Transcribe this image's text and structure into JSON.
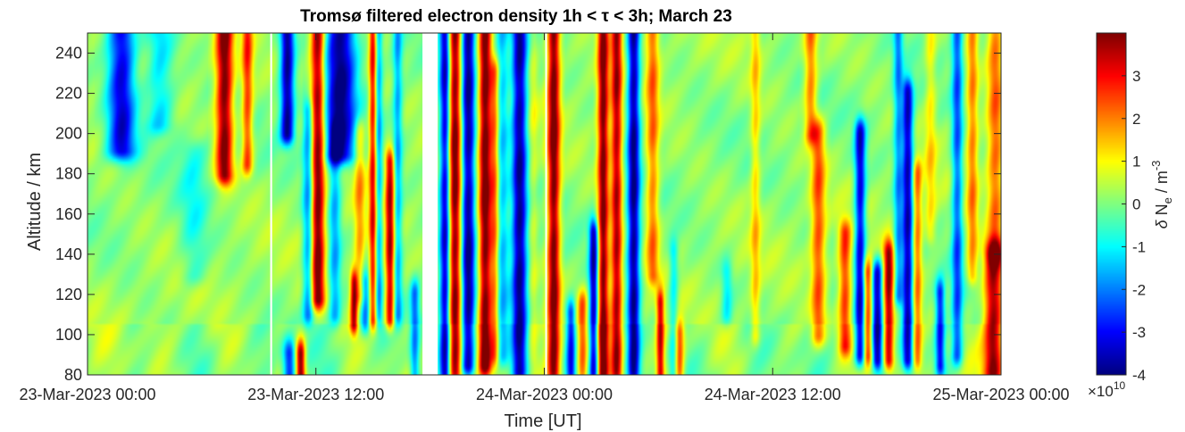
{
  "chart_data": {
    "type": "heatmap",
    "title": "Tromsø filtered electron density 1h < τ < 3h; March 23",
    "xlabel": "Time [UT]",
    "ylabel": "Altitude / km",
    "colorbar_label": "δ N_e / m^-3",
    "colorbar_multiplier": "×10^10",
    "colormap": "jet",
    "x_ticks": [
      "23-Mar-2023 00:00",
      "23-Mar-2023 12:00",
      "24-Mar-2023 00:00",
      "24-Mar-2023 12:00",
      "25-Mar-2023 00:00"
    ],
    "x_range_hours": [
      0,
      48
    ],
    "y_ticks": [
      80,
      100,
      120,
      140,
      160,
      180,
      200,
      220,
      240
    ],
    "ylim": [
      80,
      250
    ],
    "clim": [
      -4,
      4
    ],
    "colorbar_ticks": [
      -4,
      -3,
      -2,
      -1,
      0,
      1,
      2,
      3
    ],
    "data_gaps_hours": [
      [
        9.6,
        9.7
      ],
      [
        17.6,
        18.4
      ],
      [
        24.05,
        24.1
      ]
    ],
    "features": [
      {
        "center_h": 1.8,
        "width_h": 0.9,
        "value": -3.5,
        "alt_top": 250,
        "alt_bottom": 192
      },
      {
        "center_h": 3.8,
        "width_h": 0.9,
        "value": -1.5,
        "alt_top": 250,
        "alt_bottom": 205
      },
      {
        "center_h": 5.6,
        "width_h": 0.9,
        "value": -0.9,
        "alt_top": 190,
        "alt_bottom": 130
      },
      {
        "center_h": 7.2,
        "width_h": 0.55,
        "value": 4.0,
        "alt_top": 250,
        "alt_bottom": 180
      },
      {
        "center_h": 8.4,
        "width_h": 0.35,
        "value": 2.5,
        "alt_top": 250,
        "alt_bottom": 185
      },
      {
        "center_h": 10.5,
        "width_h": 0.45,
        "value": -4.0,
        "alt_top": 250,
        "alt_bottom": 200
      },
      {
        "center_h": 10.6,
        "width_h": 0.4,
        "value": -3.0,
        "alt_top": 90,
        "alt_bottom": 80
      },
      {
        "center_h": 11.2,
        "width_h": 0.3,
        "value": 4.0,
        "alt_top": 90,
        "alt_bottom": 80
      },
      {
        "center_h": 11.6,
        "width_h": 0.35,
        "value": -2.2,
        "alt_top": 210,
        "alt_bottom": 110
      },
      {
        "center_h": 12.1,
        "width_h": 0.45,
        "value": 4.0,
        "alt_top": 250,
        "alt_bottom": 118
      },
      {
        "center_h": 13.3,
        "width_h": 1.0,
        "value": -4.0,
        "alt_top": 250,
        "alt_bottom": 190
      },
      {
        "center_h": 13.0,
        "width_h": 0.4,
        "value": -1.8,
        "alt_top": 200,
        "alt_bottom": 110
      },
      {
        "center_h": 14.0,
        "width_h": 0.25,
        "value": 3.5,
        "alt_top": 125,
        "alt_bottom": 106
      },
      {
        "center_h": 14.3,
        "width_h": 0.35,
        "value": 1.5,
        "alt_top": 200,
        "alt_bottom": 120
      },
      {
        "center_h": 14.6,
        "width_h": 0.3,
        "value": -2.0,
        "alt_top": 125,
        "alt_bottom": 106
      },
      {
        "center_h": 15.0,
        "width_h": 0.25,
        "value": 3.0,
        "alt_top": 250,
        "alt_bottom": 108
      },
      {
        "center_h": 15.3,
        "width_h": 0.25,
        "value": -1.8,
        "alt_top": 250,
        "alt_bottom": 110
      },
      {
        "center_h": 15.9,
        "width_h": 0.3,
        "value": 3.5,
        "alt_top": 185,
        "alt_bottom": 108
      },
      {
        "center_h": 16.3,
        "width_h": 0.3,
        "value": -1.8,
        "alt_top": 250,
        "alt_bottom": 110
      },
      {
        "center_h": 17.2,
        "width_h": 0.3,
        "value": -2.2,
        "alt_top": 120,
        "alt_bottom": 80
      },
      {
        "center_h": 18.8,
        "width_h": 0.35,
        "value": -3.8,
        "alt_top": 250,
        "alt_bottom": 82
      },
      {
        "center_h": 19.3,
        "width_h": 0.45,
        "value": 4.0,
        "alt_top": 250,
        "alt_bottom": 82
      },
      {
        "center_h": 20.0,
        "width_h": 0.45,
        "value": -4.0,
        "alt_top": 250,
        "alt_bottom": 85
      },
      {
        "center_h": 20.9,
        "width_h": 0.4,
        "value": 4.0,
        "alt_top": 250,
        "alt_bottom": 85
      },
      {
        "center_h": 21.4,
        "width_h": 0.3,
        "value": 2.0,
        "alt_top": 230,
        "alt_bottom": 90
      },
      {
        "center_h": 21.8,
        "width_h": 0.4,
        "value": -1.6,
        "alt_top": 250,
        "alt_bottom": 90
      },
      {
        "center_h": 22.7,
        "width_h": 0.5,
        "value": -4.0,
        "alt_top": 250,
        "alt_bottom": 82
      },
      {
        "center_h": 23.4,
        "width_h": 0.3,
        "value": 0.5,
        "alt_top": 250,
        "alt_bottom": 90
      },
      {
        "center_h": 24.5,
        "width_h": 0.4,
        "value": 4.0,
        "alt_top": 250,
        "alt_bottom": 82
      },
      {
        "center_h": 25.4,
        "width_h": 0.3,
        "value": -3.0,
        "alt_top": 110,
        "alt_bottom": 82
      },
      {
        "center_h": 26.0,
        "width_h": 0.3,
        "value": 2.0,
        "alt_top": 115,
        "alt_bottom": 82
      },
      {
        "center_h": 26.6,
        "width_h": 0.3,
        "value": -3.8,
        "alt_top": 150,
        "alt_bottom": 82
      },
      {
        "center_h": 27.1,
        "width_h": 0.35,
        "value": 4.0,
        "alt_top": 250,
        "alt_bottom": 82
      },
      {
        "center_h": 27.8,
        "width_h": 0.35,
        "value": 3.5,
        "alt_top": 250,
        "alt_bottom": 82
      },
      {
        "center_h": 28.7,
        "width_h": 0.4,
        "value": -4.0,
        "alt_top": 250,
        "alt_bottom": 82
      },
      {
        "center_h": 29.7,
        "width_h": 0.4,
        "value": 2.0,
        "alt_top": 250,
        "alt_bottom": 130
      },
      {
        "center_h": 30.1,
        "width_h": 0.25,
        "value": 3.2,
        "alt_top": 115,
        "alt_bottom": 82
      },
      {
        "center_h": 30.8,
        "width_h": 0.3,
        "value": -1.4,
        "alt_top": 140,
        "alt_bottom": 82
      },
      {
        "center_h": 31.1,
        "width_h": 0.3,
        "value": 2.5,
        "alt_top": 100,
        "alt_bottom": 82
      },
      {
        "center_h": 33.6,
        "width_h": 0.35,
        "value": -1.2,
        "alt_top": 130,
        "alt_bottom": 110
      },
      {
        "center_h": 35.1,
        "width_h": 0.3,
        "value": 1.2,
        "alt_top": 250,
        "alt_bottom": 100
      },
      {
        "center_h": 38.0,
        "width_h": 0.4,
        "value": 2.0,
        "alt_top": 250,
        "alt_bottom": 200
      },
      {
        "center_h": 38.4,
        "width_h": 0.45,
        "value": 2.2,
        "alt_top": 200,
        "alt_bottom": 100
      },
      {
        "center_h": 39.8,
        "width_h": 0.4,
        "value": 2.5,
        "alt_top": 150,
        "alt_bottom": 95
      },
      {
        "center_h": 40.6,
        "width_h": 0.35,
        "value": -3.5,
        "alt_top": 200,
        "alt_bottom": 90
      },
      {
        "center_h": 41.0,
        "width_h": 0.3,
        "value": 3.0,
        "alt_top": 130,
        "alt_bottom": 90
      },
      {
        "center_h": 41.5,
        "width_h": 0.35,
        "value": -3.5,
        "alt_top": 130,
        "alt_bottom": 88
      },
      {
        "center_h": 42.1,
        "width_h": 0.35,
        "value": 3.8,
        "alt_top": 140,
        "alt_bottom": 88
      },
      {
        "center_h": 42.6,
        "width_h": 0.3,
        "value": -2.0,
        "alt_top": 250,
        "alt_bottom": 120
      },
      {
        "center_h": 43.1,
        "width_h": 0.35,
        "value": -3.8,
        "alt_top": 220,
        "alt_bottom": 88
      },
      {
        "center_h": 43.6,
        "width_h": 0.3,
        "value": 2.0,
        "alt_top": 180,
        "alt_bottom": 88
      },
      {
        "center_h": 44.3,
        "width_h": 0.35,
        "value": 1.0,
        "alt_top": 250,
        "alt_bottom": 150
      },
      {
        "center_h": 44.8,
        "width_h": 0.3,
        "value": -3.0,
        "alt_top": 120,
        "alt_bottom": 85
      },
      {
        "center_h": 45.7,
        "width_h": 0.35,
        "value": -2.5,
        "alt_top": 250,
        "alt_bottom": 90
      },
      {
        "center_h": 46.5,
        "width_h": 0.35,
        "value": 1.8,
        "alt_top": 250,
        "alt_bottom": 130
      },
      {
        "center_h": 47.6,
        "width_h": 0.6,
        "value": 3.8,
        "alt_top": 140,
        "alt_bottom": 82
      },
      {
        "center_h": 47.7,
        "width_h": 0.5,
        "value": 2.0,
        "alt_top": 250,
        "alt_bottom": 140
      }
    ]
  }
}
